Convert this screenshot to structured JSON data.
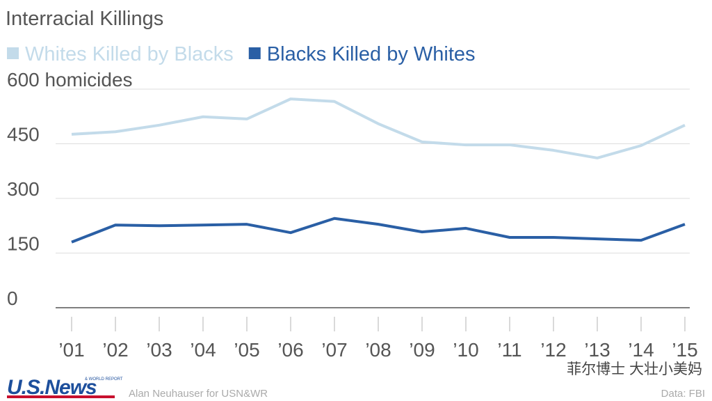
{
  "chart_data": {
    "type": "line",
    "title": "Interracial Killings",
    "categories": [
      "’01",
      "’02",
      "’03",
      "’04",
      "’05",
      "’06",
      "’07",
      "’08",
      "’09",
      "’10",
      "’11",
      "’12",
      "’13",
      "’14",
      "’15"
    ],
    "series": [
      {
        "name": "Whites Killed by Blacks",
        "color": "#c3dbea",
        "values": [
          476,
          483,
          501,
          524,
          518,
          573,
          566,
          505,
          455,
          447,
          447,
          432,
          411,
          445,
          501
        ]
      },
      {
        "name": "Blacks Killed by Whites",
        "color": "#2a5fa5",
        "values": [
          180,
          227,
          225,
          227,
          229,
          206,
          245,
          229,
          208,
          218,
          193,
          193,
          189,
          185,
          229
        ]
      }
    ],
    "ylim": [
      0,
      600
    ],
    "yticks": [
      0,
      150,
      300,
      450,
      {
        "value": 600,
        "label": "600 homicides"
      }
    ],
    "grid": true
  },
  "footer": {
    "logo": "U.S.News",
    "logo_sub": "& WORLD REPORT",
    "credit": "Alan Neuhauser for USN&WR",
    "source": "Data: FBI",
    "watermark": "菲尔博士 大壮小美妈"
  }
}
